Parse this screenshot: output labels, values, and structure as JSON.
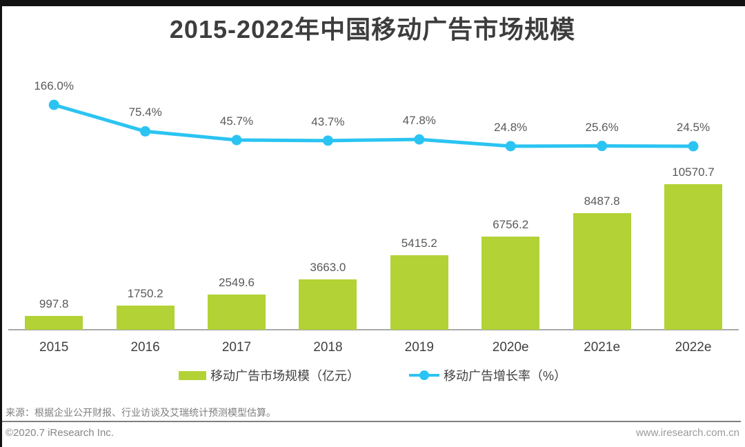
{
  "page": {
    "title": "2015-2022年中国移动广告市场规模",
    "source_note": "来源：根据企业公开财报、行业访谈及艾瑞统计预测模型估算。",
    "footer_left": "©2020.7 iResearch Inc.",
    "footer_right": "www.iresearch.com.cn"
  },
  "colors": {
    "bar": "#b2d235",
    "line": "#2bc4f2",
    "title_text": "#3d3d3d",
    "label_text": "#595959",
    "axis": "#a8a8a8",
    "footer_text": "#868686",
    "border_bar": "#121212"
  },
  "legend": [
    {
      "label": "移动广告市场规模（亿元）",
      "marker": "bar-swatch"
    },
    {
      "label": "移动广告增长率（%）",
      "marker": "line-dot"
    }
  ],
  "chart_data": {
    "type": "bar",
    "title": "2015-2022年中国移动广告市场规模",
    "categories": [
      "2015",
      "2016",
      "2017",
      "2018",
      "2019",
      "2020e",
      "2021e",
      "2022e"
    ],
    "series": [
      {
        "name": "移动广告市场规模（亿元）",
        "type": "bar",
        "values": [
          997.8,
          1750.2,
          2549.6,
          3663.0,
          5415.2,
          6756.2,
          8487.8,
          10570.7
        ],
        "labels": [
          "997.8",
          "1750.2",
          "2549.6",
          "3663.0",
          "5415.2",
          "6756.2",
          "8487.8",
          "10570.7"
        ]
      },
      {
        "name": "移动广告增长率（%）",
        "type": "line",
        "values": [
          166.0,
          75.4,
          45.7,
          43.7,
          47.8,
          24.8,
          25.6,
          24.5
        ],
        "labels": [
          "166.0%",
          "75.4%",
          "45.7%",
          "43.7%",
          "47.8%",
          "24.8%",
          "25.6%",
          "24.5%"
        ]
      }
    ],
    "xlabel": "",
    "ylabel": "",
    "bar_axis_range": [
      0,
      12000
    ],
    "line_axis_unit": "%",
    "grid": false,
    "legend_position": "bottom"
  }
}
